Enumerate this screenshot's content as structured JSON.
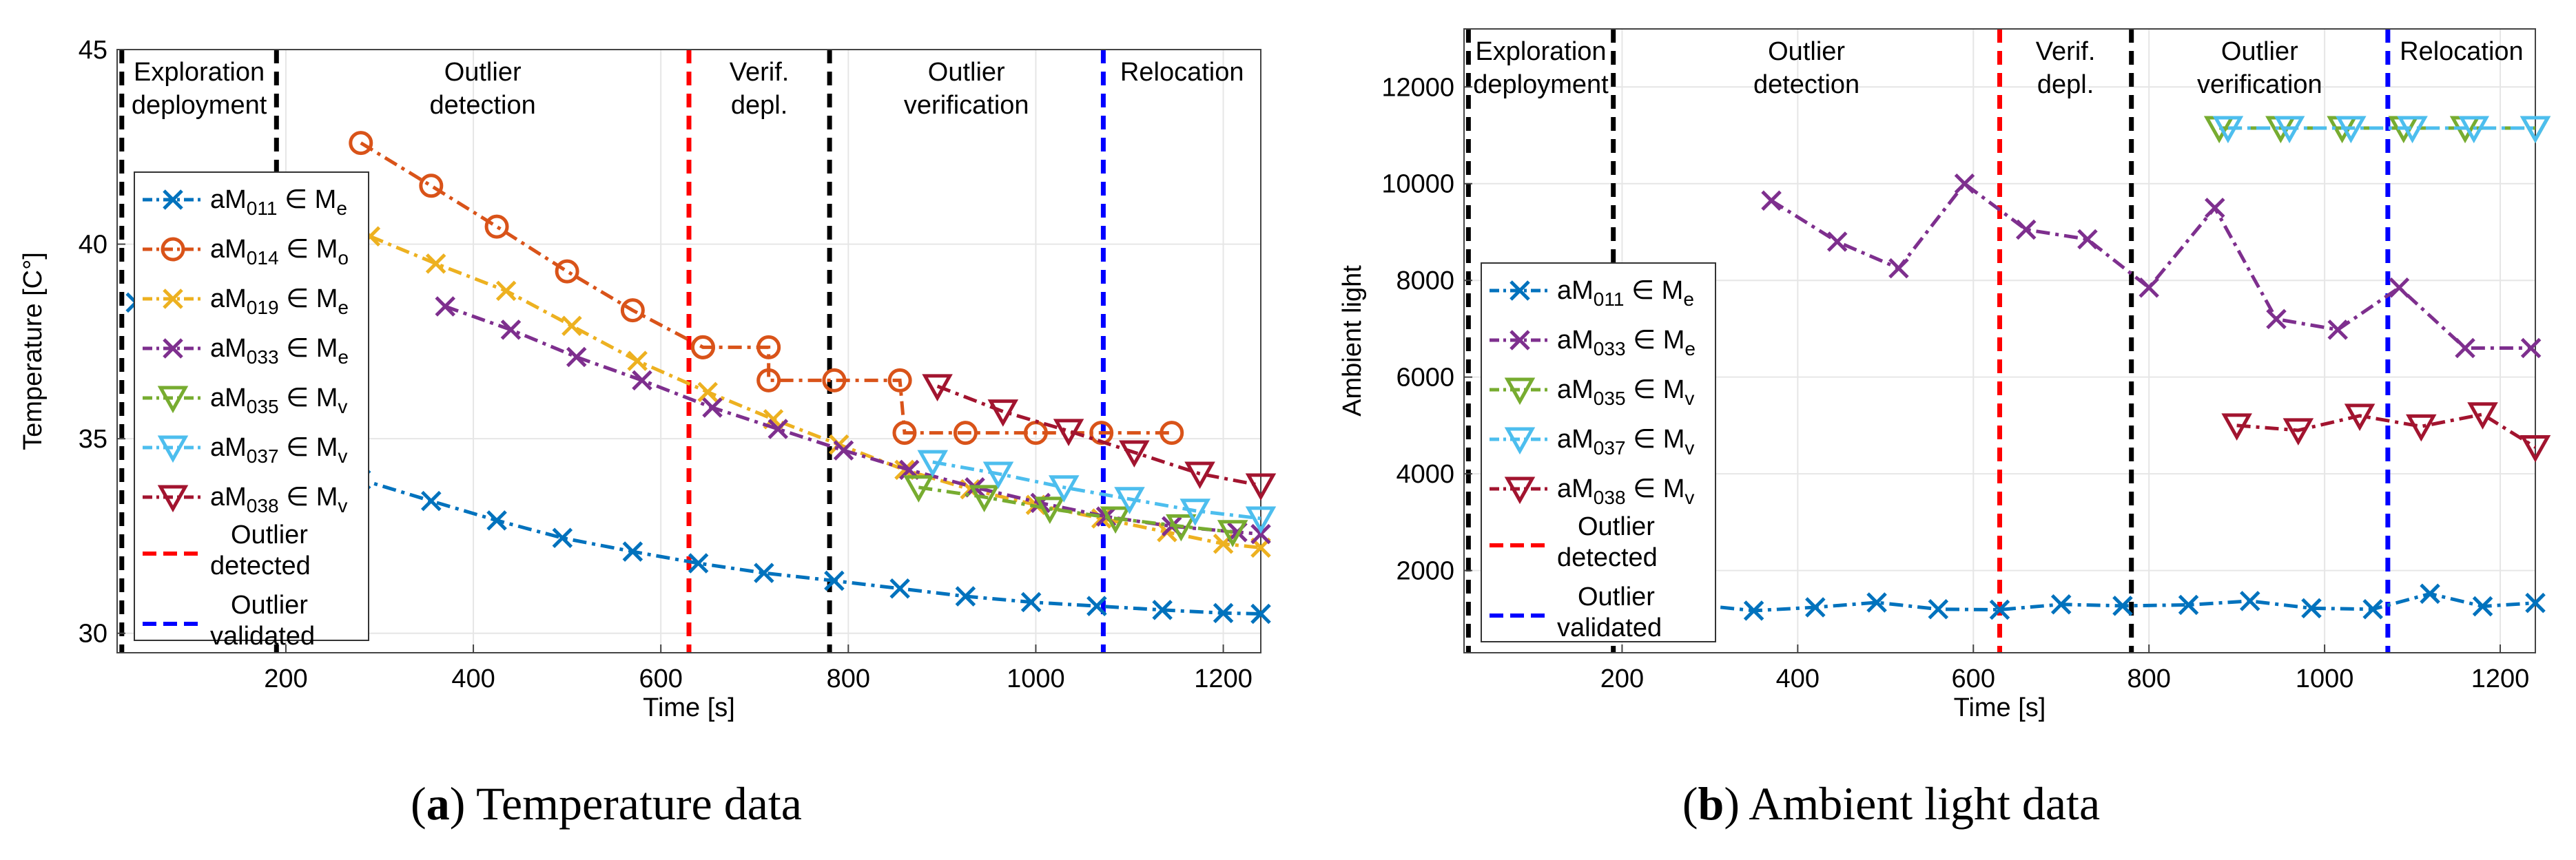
{
  "colors": {
    "blue": "#0072BD",
    "orange": "#D95319",
    "yellow": "#EDB120",
    "purple": "#7E2F8E",
    "green": "#77AC30",
    "cyan": "#4DBEEE",
    "darkred": "#A2142F",
    "red": "#FF0000",
    "navy": "#0000FF",
    "black": "#000000",
    "grid": "#e6e6e6"
  },
  "chart_data": [
    {
      "type": "line",
      "panel_label": "a",
      "caption": "Temperature data",
      "xlabel": "Time [s]",
      "ylabel": "Temperature [C°]",
      "xlim": [
        20,
        1240
      ],
      "ylim": [
        29.5,
        45
      ],
      "xticks": [
        200,
        400,
        600,
        800,
        1000,
        1200
      ],
      "yticks": [
        30,
        35,
        40,
        45
      ],
      "grid": true,
      "legend_position": "left",
      "phases": [
        "Exploration deployment",
        "Outlier detection",
        "Verif. depl.",
        "Outlier verification",
        "Relocation"
      ],
      "vlines": [
        {
          "x": 25,
          "color": "black"
        },
        {
          "x": 190,
          "color": "black"
        },
        {
          "x": 630,
          "color": "red"
        },
        {
          "x": 780,
          "color": "black"
        },
        {
          "x": 1072,
          "color": "navy"
        }
      ],
      "series": [
        {
          "name": "aM011 ∈ Me",
          "color": "blue",
          "marker": "x",
          "x": [
            40,
            80,
            120,
            160,
            200,
            240,
            280,
            355,
            425,
            495,
            570,
            640,
            710,
            785,
            855,
            925,
            995,
            1065,
            1135,
            1200,
            1240
          ],
          "y": [
            38.5,
            37.5,
            36.6,
            35.8,
            35.1,
            34.5,
            33.95,
            33.4,
            32.9,
            32.45,
            32.1,
            31.8,
            31.55,
            31.35,
            31.15,
            30.95,
            30.8,
            30.7,
            30.6,
            30.52,
            30.5
          ]
        },
        {
          "name": "aM014 ∈ Mo",
          "color": "orange",
          "marker": "o",
          "x": [
            280,
            355,
            425,
            500,
            570,
            645,
            645,
            715,
            715,
            785,
            855,
            860,
            925,
            1000,
            1070,
            1145
          ],
          "y": [
            42.6,
            41.5,
            40.45,
            39.3,
            38.3,
            37.35,
            37.35,
            37.35,
            36.5,
            36.5,
            36.5,
            35.15,
            35.15,
            35.15,
            35.15,
            35.15
          ]
        },
        {
          "name": "aM019 ∈ Me",
          "color": "yellow",
          "marker": "x",
          "x": [
            290,
            360,
            435,
            505,
            575,
            650,
            720,
            790,
            860,
            930,
            1000,
            1070,
            1140,
            1200,
            1240
          ],
          "y": [
            40.2,
            39.5,
            38.8,
            37.9,
            37.0,
            36.2,
            35.5,
            34.85,
            34.2,
            33.7,
            33.3,
            32.95,
            32.6,
            32.3,
            32.2
          ]
        },
        {
          "name": "aM033 ∈ Me",
          "color": "purple",
          "marker": "x",
          "x": [
            370,
            440,
            510,
            580,
            655,
            725,
            795,
            865,
            935,
            1005,
            1075,
            1145,
            1215,
            1240
          ],
          "y": [
            38.4,
            37.8,
            37.1,
            36.5,
            35.8,
            35.25,
            34.7,
            34.2,
            33.75,
            33.35,
            33.0,
            32.75,
            32.6,
            32.55
          ]
        },
        {
          "name": "aM035 ∈ Mv",
          "color": "green",
          "marker": "v",
          "x": [
            875,
            945,
            1015,
            1085,
            1155,
            1210
          ],
          "y": [
            33.75,
            33.5,
            33.2,
            32.95,
            32.75,
            32.6
          ]
        },
        {
          "name": "aM037 ∈ Mv",
          "color": "cyan",
          "marker": "v",
          "x": [
            890,
            960,
            1030,
            1100,
            1170,
            1240
          ],
          "y": [
            34.4,
            34.1,
            33.75,
            33.45,
            33.15,
            32.95
          ]
        },
        {
          "name": "aM038 ∈ Mv",
          "color": "darkred",
          "marker": "v",
          "x": [
            895,
            965,
            1035,
            1105,
            1175,
            1240
          ],
          "y": [
            36.35,
            35.7,
            35.2,
            34.65,
            34.1,
            33.8
          ]
        }
      ],
      "legend_extra": [
        {
          "name": "Outlier detected",
          "color": "red"
        },
        {
          "name": "Outlier validated",
          "color": "navy"
        }
      ]
    },
    {
      "type": "line",
      "panel_label": "b",
      "caption": "Ambient light data",
      "xlabel": "Time [s]",
      "ylabel": "Ambient light",
      "xlim": [
        20,
        1240
      ],
      "ylim": [
        300,
        13200
      ],
      "xticks": [
        200,
        400,
        600,
        800,
        1000,
        1200
      ],
      "yticks": [
        2000,
        4000,
        6000,
        8000,
        10000,
        12000
      ],
      "grid": true,
      "legend_position": "left",
      "phases": [
        "Exploration deployment",
        "Outlier detection",
        "Verif. depl.",
        "Outlier verification",
        "Relocation"
      ],
      "vlines": [
        {
          "x": 25,
          "color": "black"
        },
        {
          "x": 190,
          "color": "black"
        },
        {
          "x": 630,
          "color": "red"
        },
        {
          "x": 780,
          "color": "black"
        },
        {
          "x": 1072,
          "color": "navy"
        }
      ],
      "series": [
        {
          "name": "aM011 ∈ Me",
          "color": "blue",
          "marker": "x",
          "x": [
            280,
            350,
            420,
            490,
            560,
            630,
            700,
            770,
            845,
            915,
            985,
            1055,
            1120,
            1180,
            1240
          ],
          "y": [
            1300,
            1170,
            1240,
            1340,
            1200,
            1190,
            1300,
            1270,
            1290,
            1370,
            1220,
            1200,
            1520,
            1260,
            1330
          ]
        },
        {
          "name": "aM033 ∈ Me",
          "color": "purple",
          "marker": "x",
          "x": [
            370,
            445,
            515,
            590,
            660,
            730,
            800,
            875,
            945,
            1015,
            1085,
            1160,
            1235
          ],
          "y": [
            9650,
            8800,
            8250,
            10000,
            9050,
            8850,
            7850,
            9500,
            7200,
            6980,
            7850,
            6600,
            6600
          ]
        },
        {
          "name": "aM035 ∈ Mv",
          "color": "green",
          "marker": "v",
          "x": [
            880,
            950,
            1020,
            1090,
            1160,
            1240
          ],
          "y": [
            11150,
            11150,
            11150,
            11150,
            11150,
            11150
          ]
        },
        {
          "name": "aM037 ∈ Mv",
          "color": "cyan",
          "marker": "v",
          "x": [
            890,
            960,
            1030,
            1100,
            1170,
            1240
          ],
          "y": [
            11150,
            11150,
            11150,
            11150,
            11150,
            11150
          ]
        },
        {
          "name": "aM038 ∈ Mv",
          "color": "darkred",
          "marker": "v",
          "x": [
            900,
            970,
            1040,
            1110,
            1180,
            1240
          ],
          "y": [
            5000,
            4900,
            5200,
            4980,
            5230,
            4550
          ]
        }
      ],
      "legend_extra": [
        {
          "name": "Outlier detected",
          "color": "red"
        },
        {
          "name": "Outlier validated",
          "color": "navy"
        }
      ]
    }
  ]
}
